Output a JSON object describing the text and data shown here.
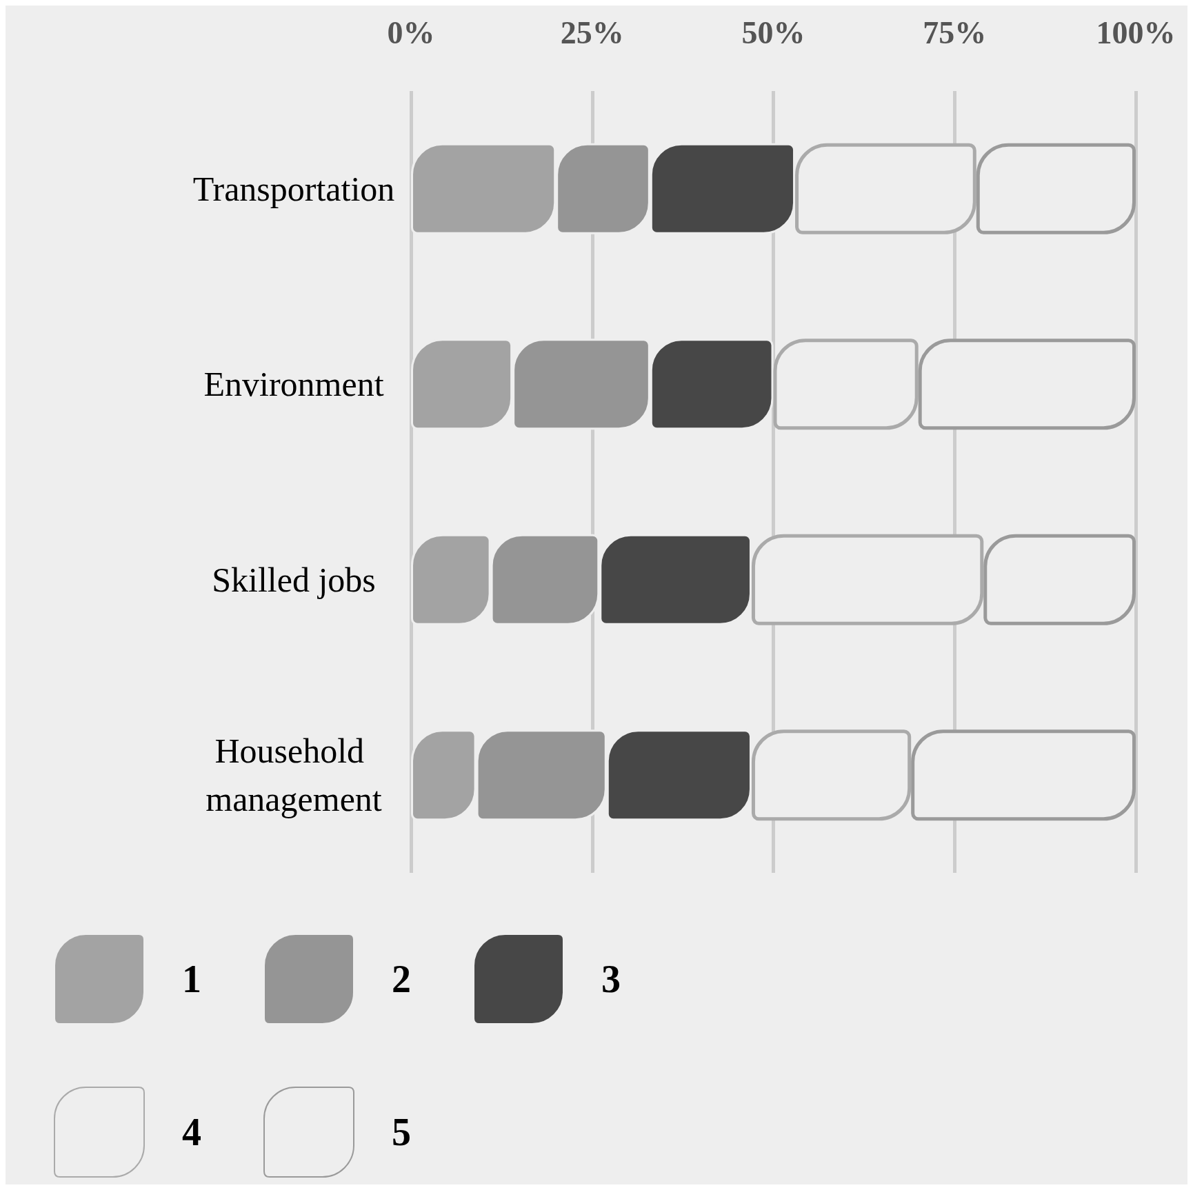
{
  "chart_data": {
    "type": "bar",
    "orientation": "horizontal",
    "stacked": true,
    "categories": [
      "Transportation",
      "Environment",
      "Skilled jobs",
      "Household management"
    ],
    "series": [
      {
        "name": "1",
        "color": "#a3a3a3",
        "values": [
          20,
          14,
          11,
          9
        ]
      },
      {
        "name": "2",
        "color": "#959595",
        "values": [
          13,
          19,
          15,
          18
        ]
      },
      {
        "name": "3",
        "color": "#474747",
        "values": [
          20,
          17,
          21,
          20
        ]
      },
      {
        "name": "4",
        "color": "#aaaaaa",
        "values": [
          25,
          20,
          32,
          22
        ]
      },
      {
        "name": "5",
        "color": "#9a9a9a",
        "values": [
          22,
          30,
          21,
          31
        ]
      }
    ],
    "xlim": [
      0,
      100
    ],
    "xticks": [
      {
        "value": 0,
        "label": "0%"
      },
      {
        "value": 25,
        "label": "25%"
      },
      {
        "value": 50,
        "label": "50%"
      },
      {
        "value": 75,
        "label": "75%"
      },
      {
        "value": 100,
        "label": "100%"
      }
    ],
    "grid": "x",
    "legend": "bottom left"
  }
}
